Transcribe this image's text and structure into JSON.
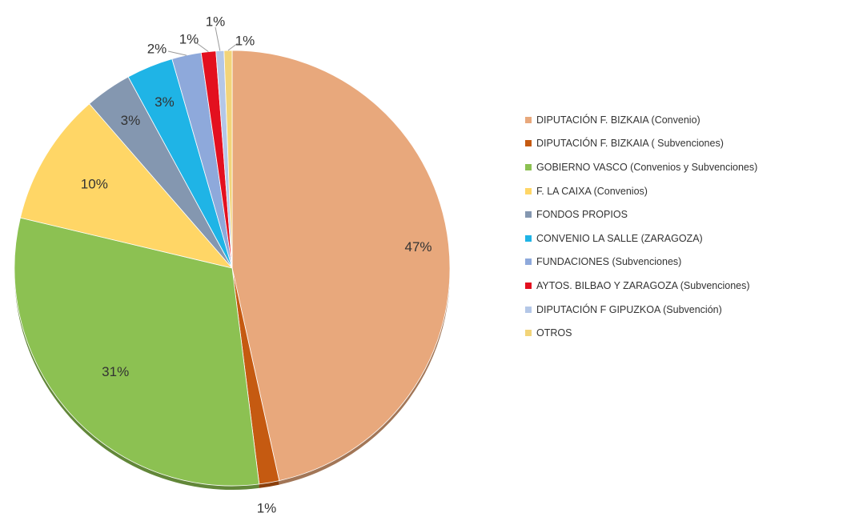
{
  "chart_data": {
    "type": "pie",
    "title": "",
    "slices": [
      {
        "label": "DIPUTACIÓN  F. BIZKAIA (Convenio)",
        "value": 47,
        "value_label": "47%",
        "color": "#E8A87C"
      },
      {
        "label": "DIPUTACIÓN  F. BIZKAIA ( Subvenciones)",
        "value": 1.5,
        "value_label": "1%",
        "color": "#C55A11"
      },
      {
        "label": "GOBIERNO VASCO  (Convenios y Subvenciones)",
        "value": 31,
        "value_label": "31%",
        "color": "#8CC152"
      },
      {
        "label": "F. LA CAIXA (Convenios)",
        "value": 10,
        "value_label": "10%",
        "color": "#FFD666"
      },
      {
        "label": "FONDOS PROPIOS",
        "value": 3.5,
        "value_label": "3%",
        "color": "#8497B0"
      },
      {
        "label": "CONVENIO LA SALLE (ZARAGOZA)",
        "value": 3.5,
        "value_label": "3%",
        "color": "#1FB4E6"
      },
      {
        "label": "FUNDACIONES (Subvenciones)",
        "value": 2.2,
        "value_label": "2%",
        "color": "#8EA9DB"
      },
      {
        "label": "AYTOS. BILBAO Y ZARAGOZA (Subvenciones)",
        "value": 1.1,
        "value_label": "1%",
        "color": "#E3101F"
      },
      {
        "label": "DIPUTACIÓN F GIPUZKOA (Subvención)",
        "value": 0.6,
        "value_label": "1%",
        "color": "#B4C7E7"
      },
      {
        "label": "OTROS",
        "value": 0.6,
        "value_label": "1%",
        "color": "#F2D479"
      }
    ],
    "legend_position": "right"
  }
}
